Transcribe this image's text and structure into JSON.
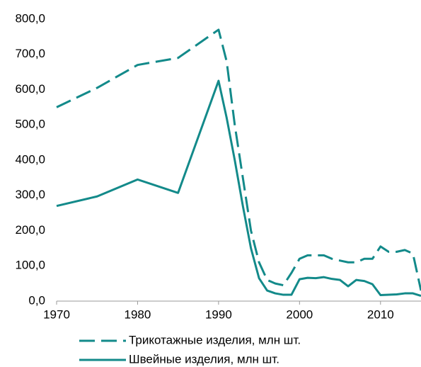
{
  "chart_data": {
    "type": "line",
    "x": [
      1970,
      1975,
      1980,
      1985,
      1990,
      1991,
      1992,
      1993,
      1994,
      1995,
      1996,
      1997,
      1998,
      1999,
      2000,
      2001,
      2002,
      2003,
      2004,
      2005,
      2006,
      2007,
      2008,
      2009,
      2010,
      2011,
      2012,
      2013,
      2014,
      2015
    ],
    "series": [
      {
        "name": "Трикотажные изделия, млн шт.",
        "color": "#138a8a",
        "linestyle": "dashed",
        "values": [
          550,
          605,
          670,
          690,
          770,
          680,
          500,
          350,
          200,
          110,
          60,
          50,
          45,
          80,
          120,
          130,
          130,
          130,
          120,
          115,
          110,
          110,
          120,
          120,
          155,
          140,
          140,
          145,
          135,
          30
        ]
      },
      {
        "name": "Швейные изделия, млн шт.",
        "color": "#138a8a",
        "linestyle": "solid",
        "values": [
          270,
          297,
          345,
          307,
          625,
          520,
          400,
          270,
          150,
          65,
          30,
          22,
          18,
          18,
          62,
          66,
          65,
          68,
          63,
          60,
          42,
          60,
          57,
          48,
          17,
          18,
          19,
          22,
          22,
          15
        ]
      }
    ],
    "xlim": [
      1970,
      2015
    ],
    "xticks": [
      1970,
      1980,
      1990,
      2000,
      2010
    ],
    "ylim": [
      0,
      800
    ],
    "yticks": [
      {
        "value": 0,
        "label": "0,0"
      },
      {
        "value": 100,
        "label": "100,0"
      },
      {
        "value": 200,
        "label": "200,0"
      },
      {
        "value": 300,
        "label": "300,0"
      },
      {
        "value": 400,
        "label": "400,0"
      },
      {
        "value": 500,
        "label": "500,0"
      },
      {
        "value": 600,
        "label": "600,0"
      },
      {
        "value": 700,
        "label": "700,0"
      },
      {
        "value": 800,
        "label": "800,0"
      }
    ],
    "grid": false,
    "legend": "bottom"
  }
}
